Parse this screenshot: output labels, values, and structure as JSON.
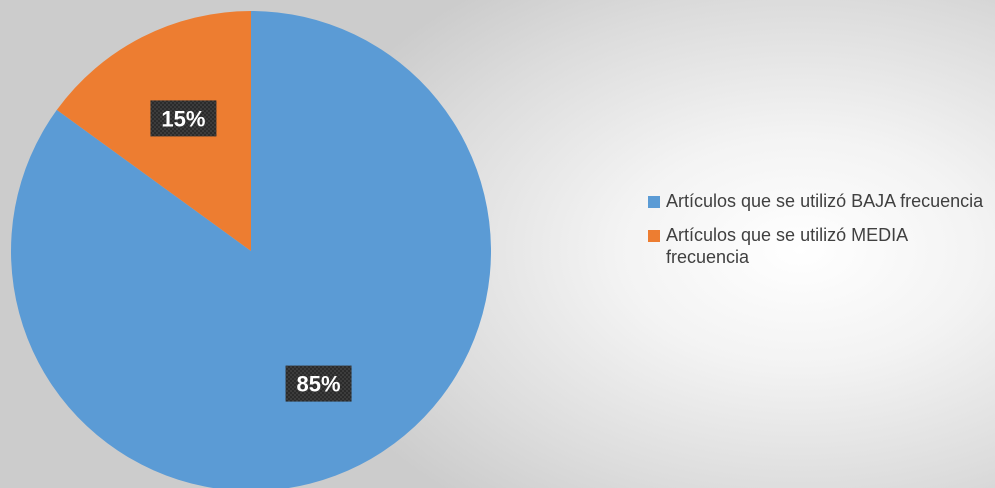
{
  "chart_data": {
    "type": "pie",
    "title": "",
    "categories": [
      "Artículos que se utilizó BAJA frecuencia",
      "Artículos que se utilizó MEDIA frecuencia"
    ],
    "values": [
      85,
      15
    ],
    "data_labels": [
      "85%",
      "15%"
    ],
    "colors": [
      "#5b9bd5",
      "#ed7d31"
    ],
    "start_angle_deg": 0,
    "direction": "clockwise",
    "legend_position": "right",
    "label_style": "dark-patterned box, white bold text"
  },
  "legend": {
    "items": [
      {
        "label": "Artículos que se utilizó BAJA frecuencia",
        "color": "#5b9bd5"
      },
      {
        "label": "Artículos que se utilizó MEDIA frecuencia",
        "color": "#ed7d31"
      }
    ]
  }
}
